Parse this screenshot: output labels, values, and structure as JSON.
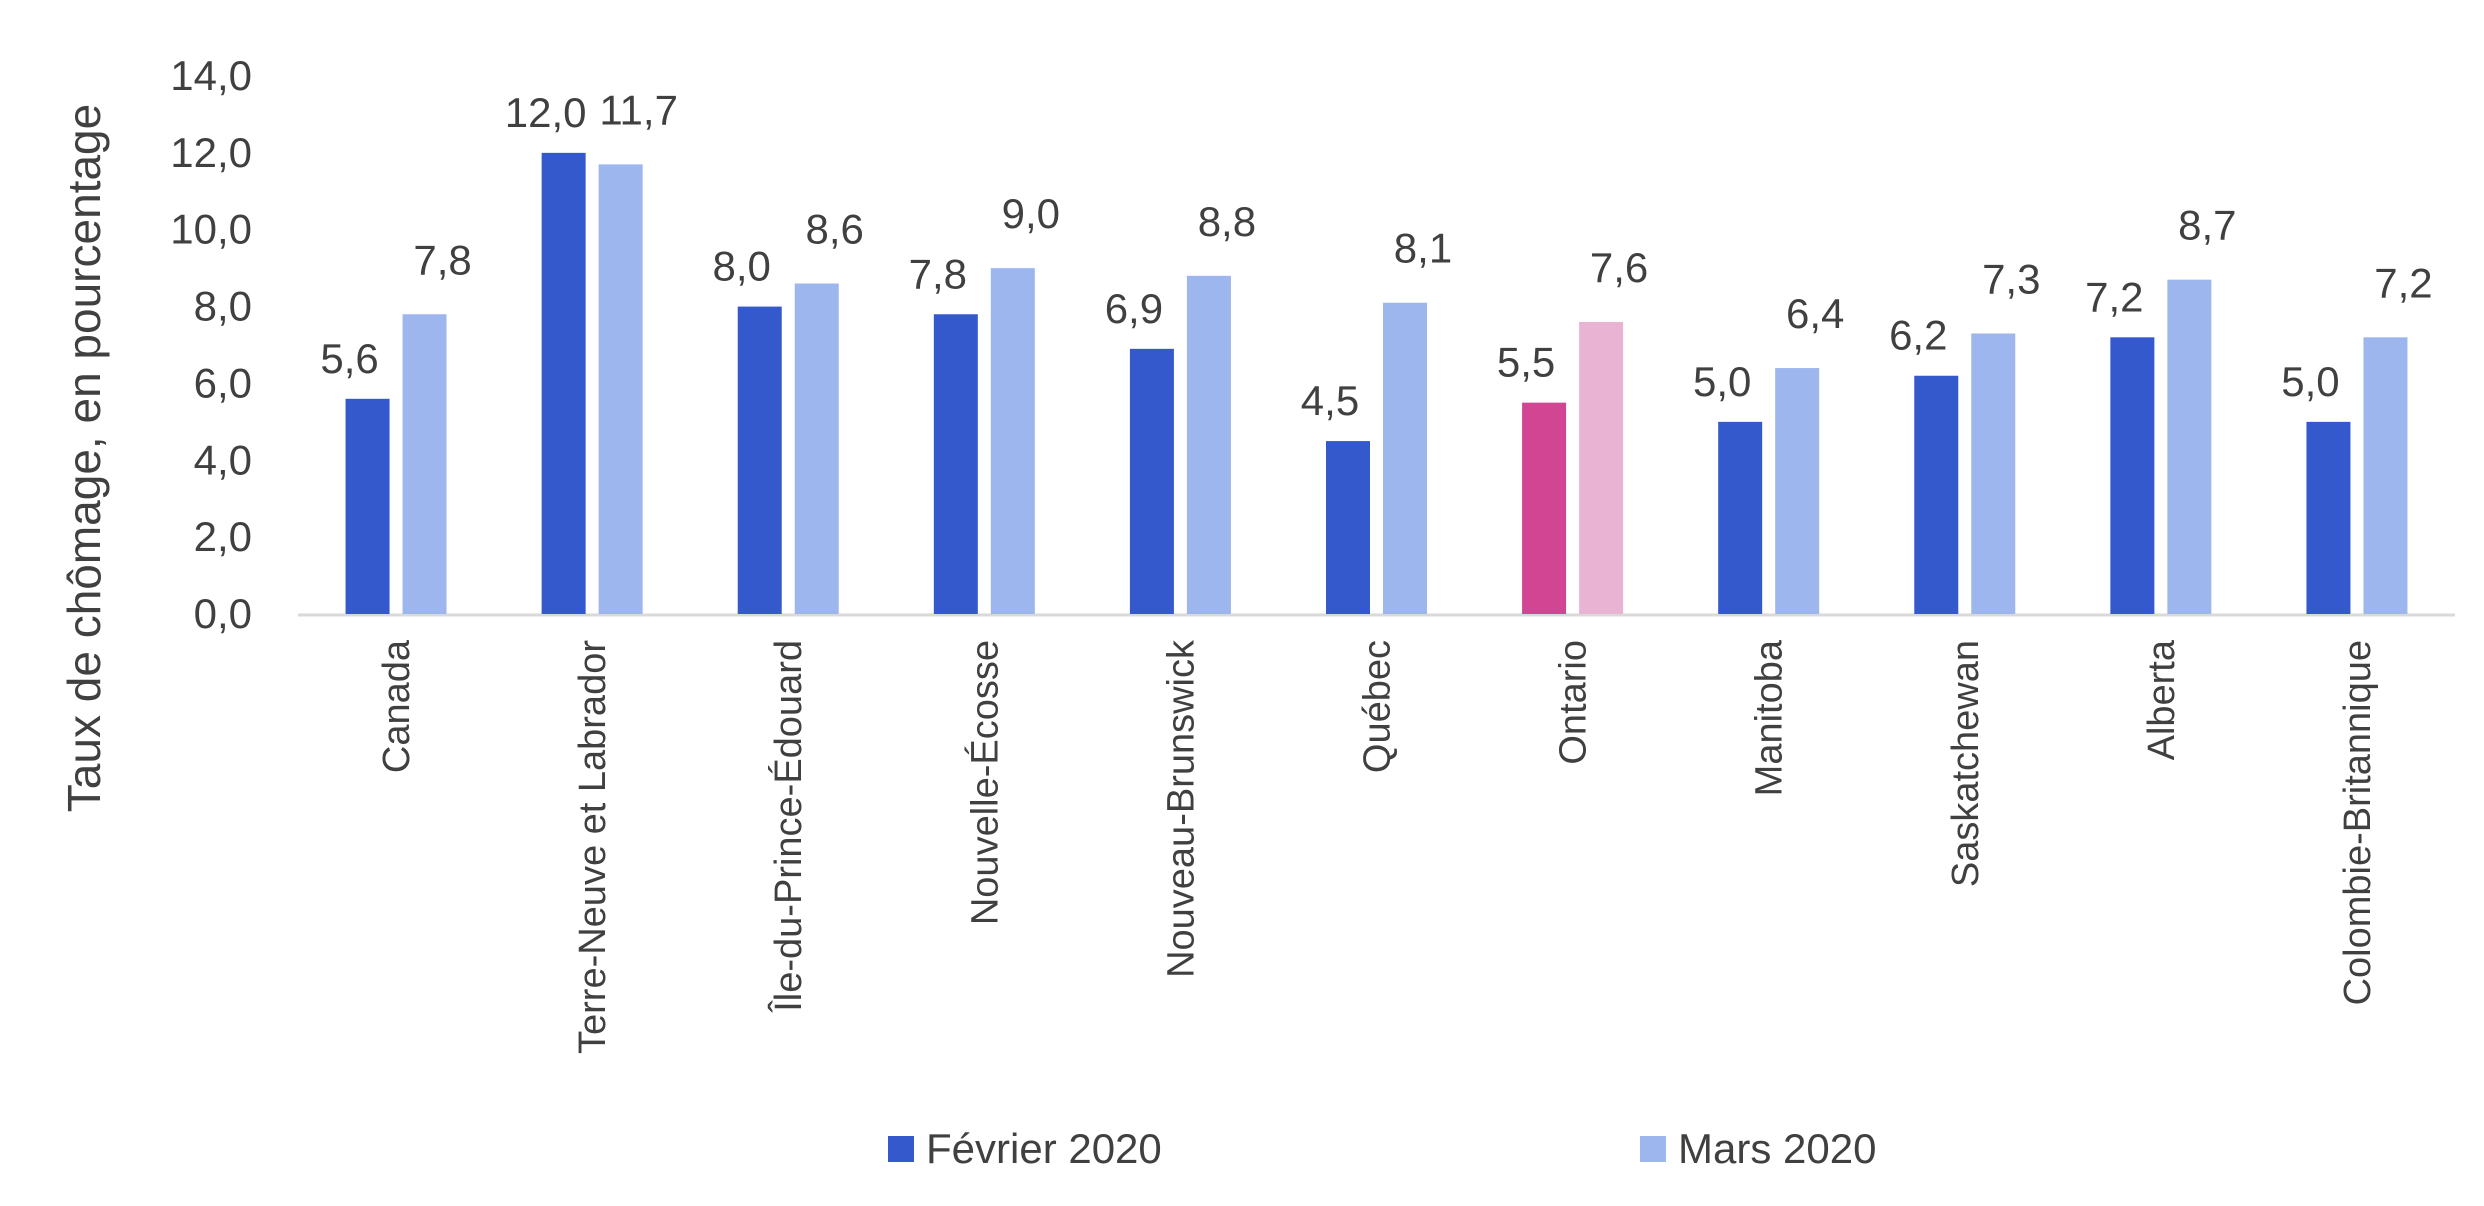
{
  "chart_data": {
    "type": "bar",
    "ylabel": "Taux de chômage, en pourcentage",
    "ylim": [
      0,
      14
    ],
    "yticks": [
      "0,0",
      "2,0",
      "4,0",
      "6,0",
      "8,0",
      "10,0",
      "12,0",
      "14,0"
    ],
    "grid": false,
    "legend_position": "bottom",
    "categories": [
      "Canada",
      "Terre-Neuve et Labrador",
      "Île-du-Prince-Édouard",
      "Nouvelle-Écosse",
      "Nouveau-Brunswick",
      "Québec",
      "Ontario",
      "Manitoba",
      "Saskatchewan",
      "Alberta",
      "Colombie-Britannique"
    ],
    "series": [
      {
        "name": "Février 2020",
        "color": "#3359CC",
        "values": [
          5.6,
          12.0,
          8.0,
          7.8,
          6.9,
          4.5,
          5.5,
          5.0,
          6.2,
          7.2,
          5.0
        ],
        "labels": [
          "5,6",
          "12,0",
          "8,0",
          "7,8",
          "6,9",
          "4,5",
          "5,5",
          "5,0",
          "6,2",
          "7,2",
          "5,0"
        ]
      },
      {
        "name": "Mars 2020",
        "color": "#9DB6EE",
        "values": [
          7.8,
          11.7,
          8.6,
          9.0,
          8.8,
          8.1,
          7.6,
          6.4,
          7.3,
          8.7,
          7.2
        ],
        "labels": [
          "7,8",
          "11,7",
          "8,6",
          "9,0",
          "8,8",
          "8,1",
          "7,6",
          "6,4",
          "7,3",
          "8,7",
          "7,2"
        ]
      }
    ],
    "highlight": {
      "category": "Ontario",
      "colors": [
        "#D14592",
        "#E9B4D3"
      ]
    }
  }
}
